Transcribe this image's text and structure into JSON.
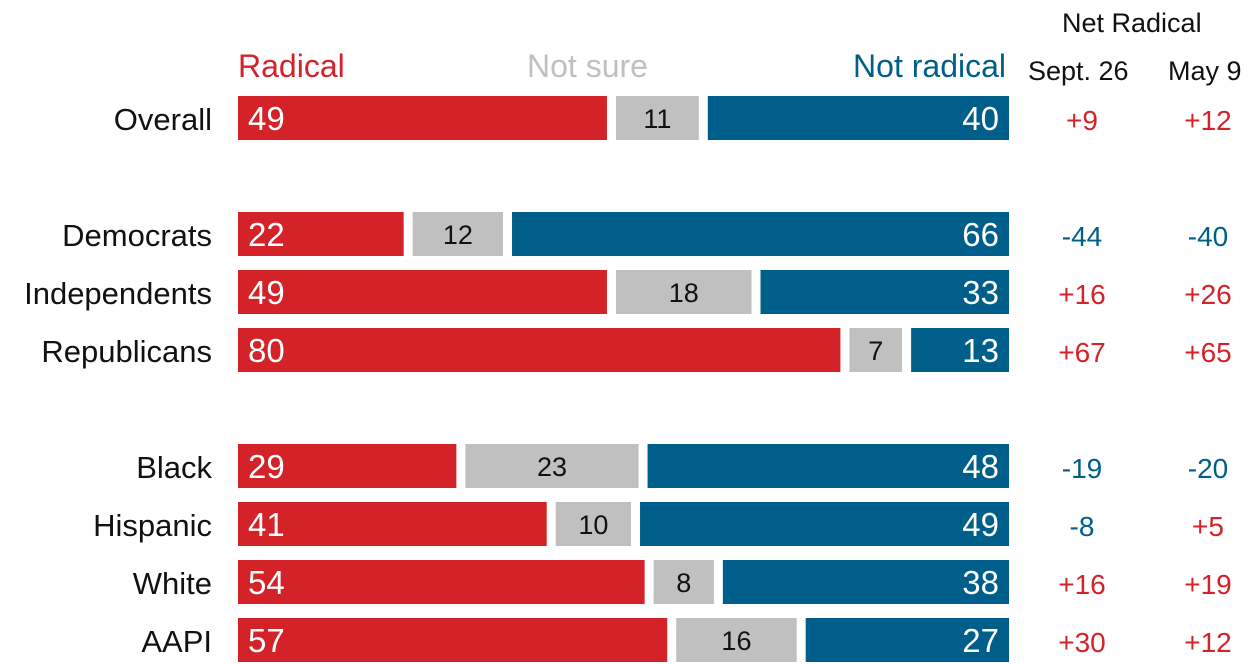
{
  "chart_data": {
    "type": "bar",
    "stacked": true,
    "orientation": "horizontal",
    "legend": {
      "radical": "Radical",
      "not_sure": "Not sure",
      "not_radical": "Not radical"
    },
    "net_header": "Net Radical",
    "net_columns": [
      "Sept. 26",
      "May 9"
    ],
    "groups": [
      {
        "rows": [
          {
            "label": "Overall",
            "radical": 49,
            "not_sure": 11,
            "not_radical": 40,
            "net": [
              "+9",
              "+12"
            ]
          }
        ]
      },
      {
        "rows": [
          {
            "label": "Democrats",
            "radical": 22,
            "not_sure": 12,
            "not_radical": 66,
            "net": [
              "-44",
              "-40"
            ]
          },
          {
            "label": "Independents",
            "radical": 49,
            "not_sure": 18,
            "not_radical": 33,
            "net": [
              "+16",
              "+26"
            ]
          },
          {
            "label": "Republicans",
            "radical": 80,
            "not_sure": 7,
            "not_radical": 13,
            "net": [
              "+67",
              "+65"
            ]
          }
        ]
      },
      {
        "rows": [
          {
            "label": "Black",
            "radical": 29,
            "not_sure": 23,
            "not_radical": 48,
            "net": [
              "-19",
              "-20"
            ]
          },
          {
            "label": "Hispanic",
            "radical": 41,
            "not_sure": 10,
            "not_radical": 49,
            "net": [
              "-8",
              "+5"
            ]
          },
          {
            "label": "White",
            "radical": 54,
            "not_sure": 8,
            "not_radical": 38,
            "net": [
              "+16",
              "+19"
            ]
          },
          {
            "label": "AAPI",
            "radical": 57,
            "not_sure": 16,
            "not_radical": 27,
            "net": [
              "+30",
              "+12"
            ]
          }
        ]
      }
    ]
  },
  "colors": {
    "radical": "#d42229",
    "not_sure": "#c0c0c0",
    "not_radical": "#005f8a",
    "text": "#111111"
  }
}
